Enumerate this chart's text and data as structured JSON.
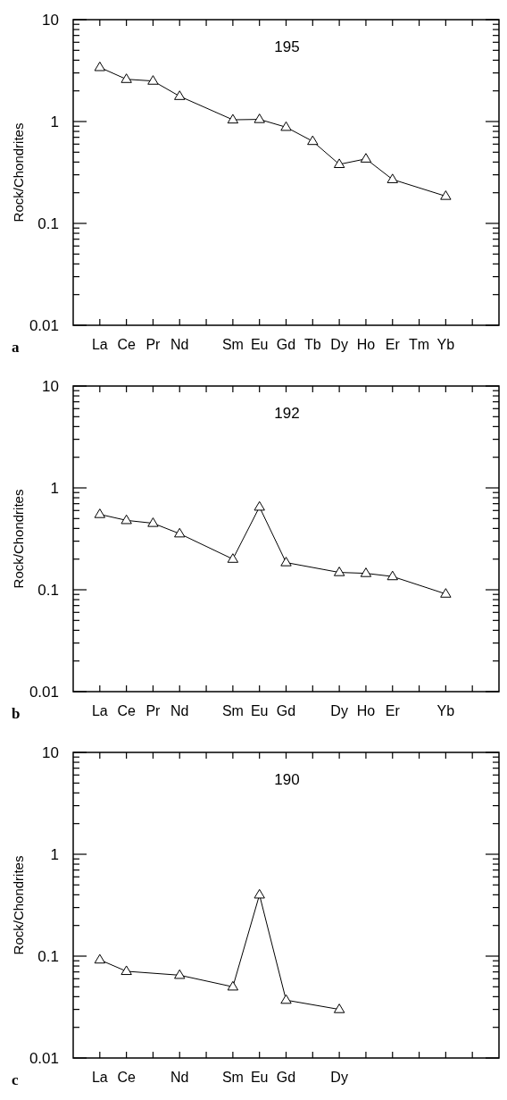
{
  "chart_data": [
    {
      "type": "line",
      "title": "195",
      "ylabel": "Rock/Chondrites",
      "annotations": [
        "a"
      ],
      "log": true,
      "marker": "triangle",
      "ylim": [
        0.01,
        10
      ],
      "yticks": [
        0.01,
        {
          "value": 0.02,
          "label": null
        },
        {
          "value": 0.03,
          "label": null
        },
        {
          "value": 0.04,
          "label": null
        },
        {
          "value": 0.05,
          "label": null
        },
        {
          "value": 0.06,
          "label": null
        },
        {
          "value": 0.07,
          "label": null
        },
        {
          "value": 0.08,
          "label": null
        },
        {
          "value": 0.09,
          "label": null
        },
        0.1,
        {
          "value": 0.2,
          "label": null
        },
        {
          "value": 0.3,
          "label": null
        },
        {
          "value": 0.4,
          "label": null
        },
        {
          "value": 0.5,
          "label": null
        },
        {
          "value": 0.6,
          "label": null
        },
        {
          "value": 0.7,
          "label": null
        },
        {
          "value": 0.8,
          "label": null
        },
        {
          "value": 0.9,
          "label": null
        },
        1,
        {
          "value": 2,
          "label": null
        },
        {
          "value": 3,
          "label": null
        },
        {
          "value": 4,
          "label": null
        },
        {
          "value": 5,
          "label": null
        },
        {
          "value": 6,
          "label": null
        },
        {
          "value": 7,
          "label": null
        },
        {
          "value": 8,
          "label": null
        },
        {
          "value": 9,
          "label": null
        },
        10
      ],
      "categories": [
        "La",
        "Ce",
        "Pr",
        "Nd",
        null,
        "Sm",
        "Eu",
        "Gd",
        "Tb",
        "Dy",
        "Ho",
        "Er",
        "Tm",
        "Yb",
        null
      ],
      "series": [
        {
          "color": "#000000",
          "values": [
            3.4,
            2.6,
            2.5,
            1.77,
            null,
            1.04,
            1.05,
            0.88,
            0.64,
            0.38,
            0.43,
            0.27,
            null,
            0.185,
            null
          ]
        }
      ]
    },
    {
      "type": "line",
      "title": "192",
      "ylabel": "Rock/Chondrites",
      "annotations": [
        "b"
      ],
      "log": true,
      "marker": "triangle",
      "ylim": [
        0.01,
        10
      ],
      "yticks": [
        0.01,
        {
          "value": 0.02,
          "label": null
        },
        {
          "value": 0.03,
          "label": null
        },
        {
          "value": 0.04,
          "label": null
        },
        {
          "value": 0.05,
          "label": null
        },
        {
          "value": 0.06,
          "label": null
        },
        {
          "value": 0.07,
          "label": null
        },
        {
          "value": 0.08,
          "label": null
        },
        {
          "value": 0.09,
          "label": null
        },
        0.1,
        {
          "value": 0.2,
          "label": null
        },
        {
          "value": 0.3,
          "label": null
        },
        {
          "value": 0.4,
          "label": null
        },
        {
          "value": 0.5,
          "label": null
        },
        {
          "value": 0.6,
          "label": null
        },
        {
          "value": 0.7,
          "label": null
        },
        {
          "value": 0.8,
          "label": null
        },
        {
          "value": 0.9,
          "label": null
        },
        1,
        {
          "value": 2,
          "label": null
        },
        {
          "value": 3,
          "label": null
        },
        {
          "value": 4,
          "label": null
        },
        {
          "value": 5,
          "label": null
        },
        {
          "value": 6,
          "label": null
        },
        {
          "value": 7,
          "label": null
        },
        {
          "value": 8,
          "label": null
        },
        {
          "value": 9,
          "label": null
        },
        10
      ],
      "categories": [
        "La",
        "Ce",
        "Pr",
        "Nd",
        null,
        "Sm",
        "Eu",
        "Gd",
        null,
        "Dy",
        "Ho",
        "Er",
        null,
        "Yb",
        null
      ],
      "series": [
        {
          "color": "#000000",
          "values": [
            0.55,
            0.48,
            0.45,
            0.355,
            null,
            0.2,
            0.65,
            0.185,
            null,
            0.148,
            0.145,
            0.135,
            null,
            0.091,
            null
          ]
        }
      ]
    },
    {
      "type": "line",
      "title": "190",
      "ylabel": "Rock/Chondrites",
      "annotations": [
        "c"
      ],
      "log": true,
      "marker": "triangle",
      "ylim": [
        0.01,
        10
      ],
      "yticks": [
        0.01,
        {
          "value": 0.02,
          "label": null
        },
        {
          "value": 0.03,
          "label": null
        },
        {
          "value": 0.04,
          "label": null
        },
        {
          "value": 0.05,
          "label": null
        },
        {
          "value": 0.06,
          "label": null
        },
        {
          "value": 0.07,
          "label": null
        },
        {
          "value": 0.08,
          "label": null
        },
        {
          "value": 0.09,
          "label": null
        },
        0.1,
        {
          "value": 0.2,
          "label": null
        },
        {
          "value": 0.3,
          "label": null
        },
        {
          "value": 0.4,
          "label": null
        },
        {
          "value": 0.5,
          "label": null
        },
        {
          "value": 0.6,
          "label": null
        },
        {
          "value": 0.7,
          "label": null
        },
        {
          "value": 0.8,
          "label": null
        },
        {
          "value": 0.9,
          "label": null
        },
        1,
        {
          "value": 2,
          "label": null
        },
        {
          "value": 3,
          "label": null
        },
        {
          "value": 4,
          "label": null
        },
        {
          "value": 5,
          "label": null
        },
        {
          "value": 6,
          "label": null
        },
        {
          "value": 7,
          "label": null
        },
        {
          "value": 8,
          "label": null
        },
        {
          "value": 9,
          "label": null
        },
        10
      ],
      "categories": [
        "La",
        "Ce",
        null,
        "Nd",
        null,
        "Sm",
        "Eu",
        "Gd",
        null,
        "Dy",
        null,
        null,
        null,
        null,
        null
      ],
      "series": [
        {
          "color": "#000000",
          "values": [
            0.092,
            0.071,
            null,
            0.065,
            null,
            0.05,
            0.4,
            0.037,
            null,
            0.03,
            null,
            null,
            null,
            null,
            null
          ]
        }
      ]
    }
  ]
}
